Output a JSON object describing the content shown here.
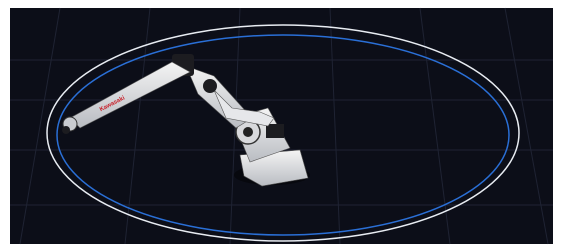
{
  "image": {
    "logo": "Kawasaki"
  }
}
